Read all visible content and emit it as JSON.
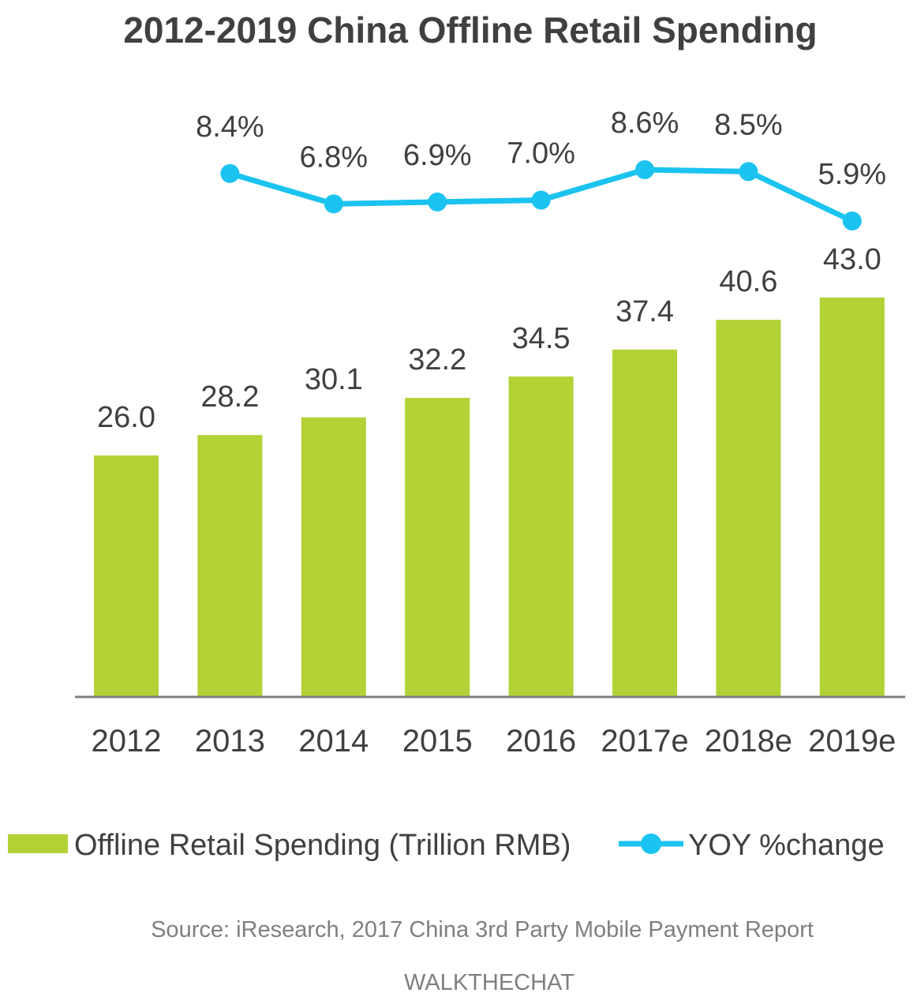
{
  "colors": {
    "bar": "#b2d235",
    "line": "#1bc3f0",
    "text": "#404040",
    "axis": "#7f7f7f",
    "muted": "#7f7f7f"
  },
  "chart_data": {
    "type": "bar",
    "title": "2012-2019 China Offline Retail Spending",
    "categories": [
      "2012",
      "2013",
      "2014",
      "2015",
      "2016",
      "2017e",
      "2018e",
      "2019e"
    ],
    "series": [
      {
        "name": "Offline Retail Spending (Trillion RMB)",
        "type": "bar",
        "values": [
          26.0,
          28.2,
          30.1,
          32.2,
          34.5,
          37.4,
          40.6,
          43.0
        ],
        "labels": [
          "26.0",
          "28.2",
          "30.1",
          "32.2",
          "34.5",
          "37.4",
          "40.6",
          "43.0"
        ]
      },
      {
        "name": "YOY %change",
        "type": "line",
        "values": [
          null,
          8.4,
          6.8,
          6.9,
          7.0,
          8.6,
          8.5,
          5.9
        ],
        "labels": [
          null,
          "8.4%",
          "6.8%",
          "6.9%",
          "7.0%",
          "8.6%",
          "8.5%",
          "5.9%"
        ]
      }
    ],
    "bar_axis_range": [
      0,
      43.0
    ],
    "line_axis_range": [
      5.9,
      8.6
    ],
    "legend_position": "bottom",
    "grid": false,
    "xlabel": "",
    "ylabel": ""
  },
  "legend": {
    "bar_label": "Offline Retail Spending (Trillion RMB)",
    "line_label": "YOY %change"
  },
  "footer": {
    "source": "Source: iResearch, 2017 China 3rd Party Mobile Payment Report",
    "brand": "WALKTHECHAT"
  }
}
